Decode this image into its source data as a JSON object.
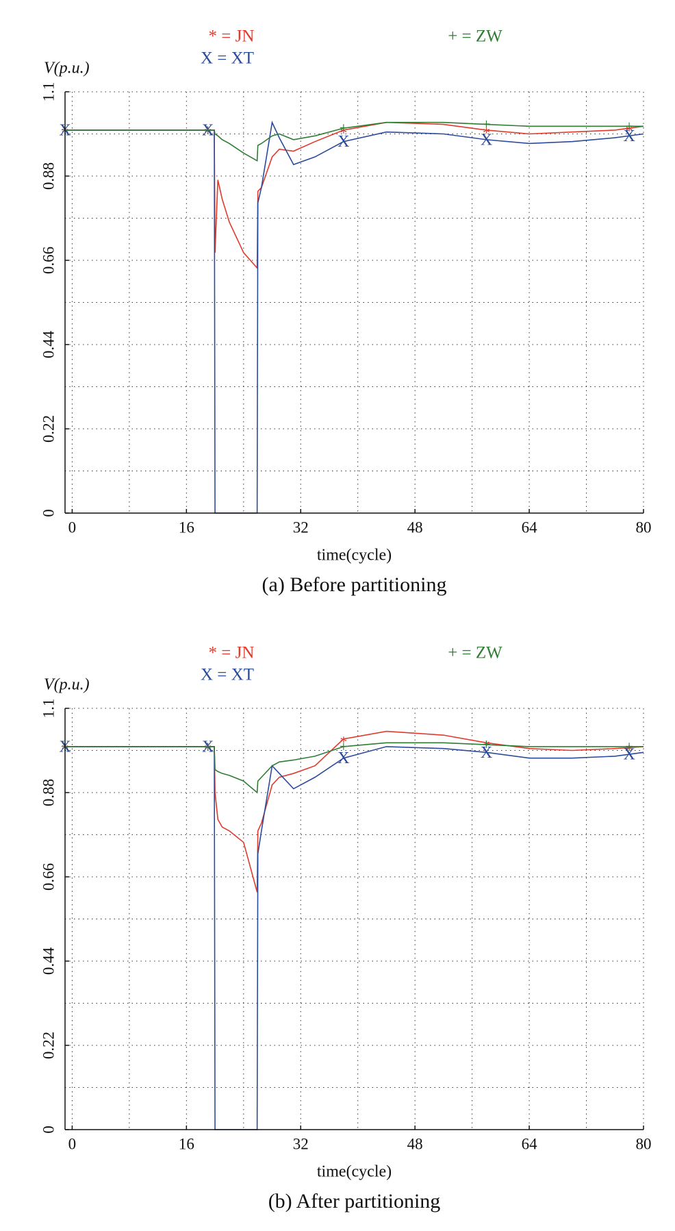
{
  "chart_data": [
    {
      "type": "line",
      "caption": "(a) Before partitioning",
      "y_label": "V(p.u.)",
      "x_label": "time(cycle)",
      "x": [
        -1,
        19.9,
        20,
        20.4,
        21,
        22,
        24,
        25.9,
        26,
        26.5,
        28,
        29,
        31,
        34,
        38,
        44,
        52,
        58,
        64,
        70,
        76,
        80
      ],
      "series": [
        {
          "name": "* = JN",
          "marker": "*",
          "color": "#e03a2c",
          "marker_x": [
            -1,
            19,
            38,
            58,
            78
          ],
          "values": [
            1.0,
            1.0,
            0.68,
            0.87,
            0.82,
            0.76,
            0.68,
            0.64,
            0.84,
            0.85,
            0.93,
            0.95,
            0.945,
            0.97,
            1.0,
            1.02,
            1.015,
            1.0,
            0.99,
            0.995,
            1.0,
            1.01
          ]
        },
        {
          "name": "X = XT",
          "marker": "X",
          "color": "#2a4a9c",
          "marker_x": [
            -1,
            19,
            38,
            58,
            78
          ],
          "values": [
            1.0,
            1.0,
            0,
            0,
            0,
            0,
            0,
            0,
            0.81,
            0.85,
            1.02,
            0.98,
            0.91,
            0.93,
            0.97,
            0.995,
            0.99,
            0.975,
            0.965,
            0.97,
            0.98,
            0.99
          ]
        },
        {
          "name": "+ = ZW",
          "marker": "+",
          "color": "#2e7d32",
          "marker_x": [
            -1,
            19,
            38,
            58,
            78
          ],
          "values": [
            1.0,
            1.0,
            0.99,
            0.985,
            0.975,
            0.965,
            0.94,
            0.92,
            0.96,
            0.965,
            0.985,
            0.99,
            0.975,
            0.985,
            1.005,
            1.02,
            1.02,
            1.015,
            1.01,
            1.01,
            1.01,
            1.01
          ]
        }
      ],
      "xlim": [
        -1,
        80
      ],
      "ylim": [
        0,
        1.1
      ],
      "xticks": [
        0,
        16,
        32,
        48,
        64,
        80
      ],
      "yticks": [
        0,
        0.22,
        0.44,
        0.66,
        0.88,
        1.1
      ],
      "grid": true,
      "minor_grid": true
    },
    {
      "type": "line",
      "caption": "(b) After partitioning",
      "y_label": "V(p.u.)",
      "x_label": "time(cycle)",
      "x": [
        -1,
        19.9,
        20,
        20.4,
        21,
        22,
        24,
        25.9,
        26,
        26.5,
        28,
        29,
        31,
        34,
        38,
        44,
        52,
        58,
        64,
        70,
        76,
        80
      ],
      "series": [
        {
          "name": "* = JN",
          "marker": "*",
          "color": "#e03a2c",
          "marker_x": [
            -1,
            19,
            38,
            58,
            78
          ],
          "values": [
            1.0,
            1.0,
            0.88,
            0.81,
            0.79,
            0.78,
            0.75,
            0.62,
            0.78,
            0.8,
            0.9,
            0.92,
            0.93,
            0.95,
            1.02,
            1.04,
            1.03,
            1.01,
            0.995,
            0.99,
            0.995,
            1.0
          ]
        },
        {
          "name": "X = XT",
          "marker": "X",
          "color": "#2a4a9c",
          "marker_x": [
            -1,
            19,
            38,
            58,
            78
          ],
          "values": [
            1.0,
            1.0,
            0,
            0,
            0,
            0,
            0,
            0,
            0.72,
            0.78,
            0.95,
            0.93,
            0.89,
            0.92,
            0.97,
            1.0,
            0.995,
            0.985,
            0.97,
            0.97,
            0.975,
            0.985
          ]
        },
        {
          "name": "+ = ZW",
          "marker": "+",
          "color": "#2e7d32",
          "marker_x": [
            -1,
            19,
            38,
            58,
            78
          ],
          "values": [
            1.0,
            1.0,
            0.94,
            0.935,
            0.93,
            0.925,
            0.91,
            0.88,
            0.91,
            0.92,
            0.95,
            0.96,
            0.965,
            0.975,
            1.0,
            1.01,
            1.01,
            1.005,
            1.0,
            1.0,
            1.0,
            1.0
          ]
        }
      ],
      "xlim": [
        -1,
        80
      ],
      "ylim": [
        0,
        1.1
      ],
      "xticks": [
        0,
        16,
        32,
        48,
        64,
        80
      ],
      "yticks": [
        0,
        0.22,
        0.44,
        0.66,
        0.88,
        1.1
      ],
      "grid": true,
      "minor_grid": true
    }
  ]
}
